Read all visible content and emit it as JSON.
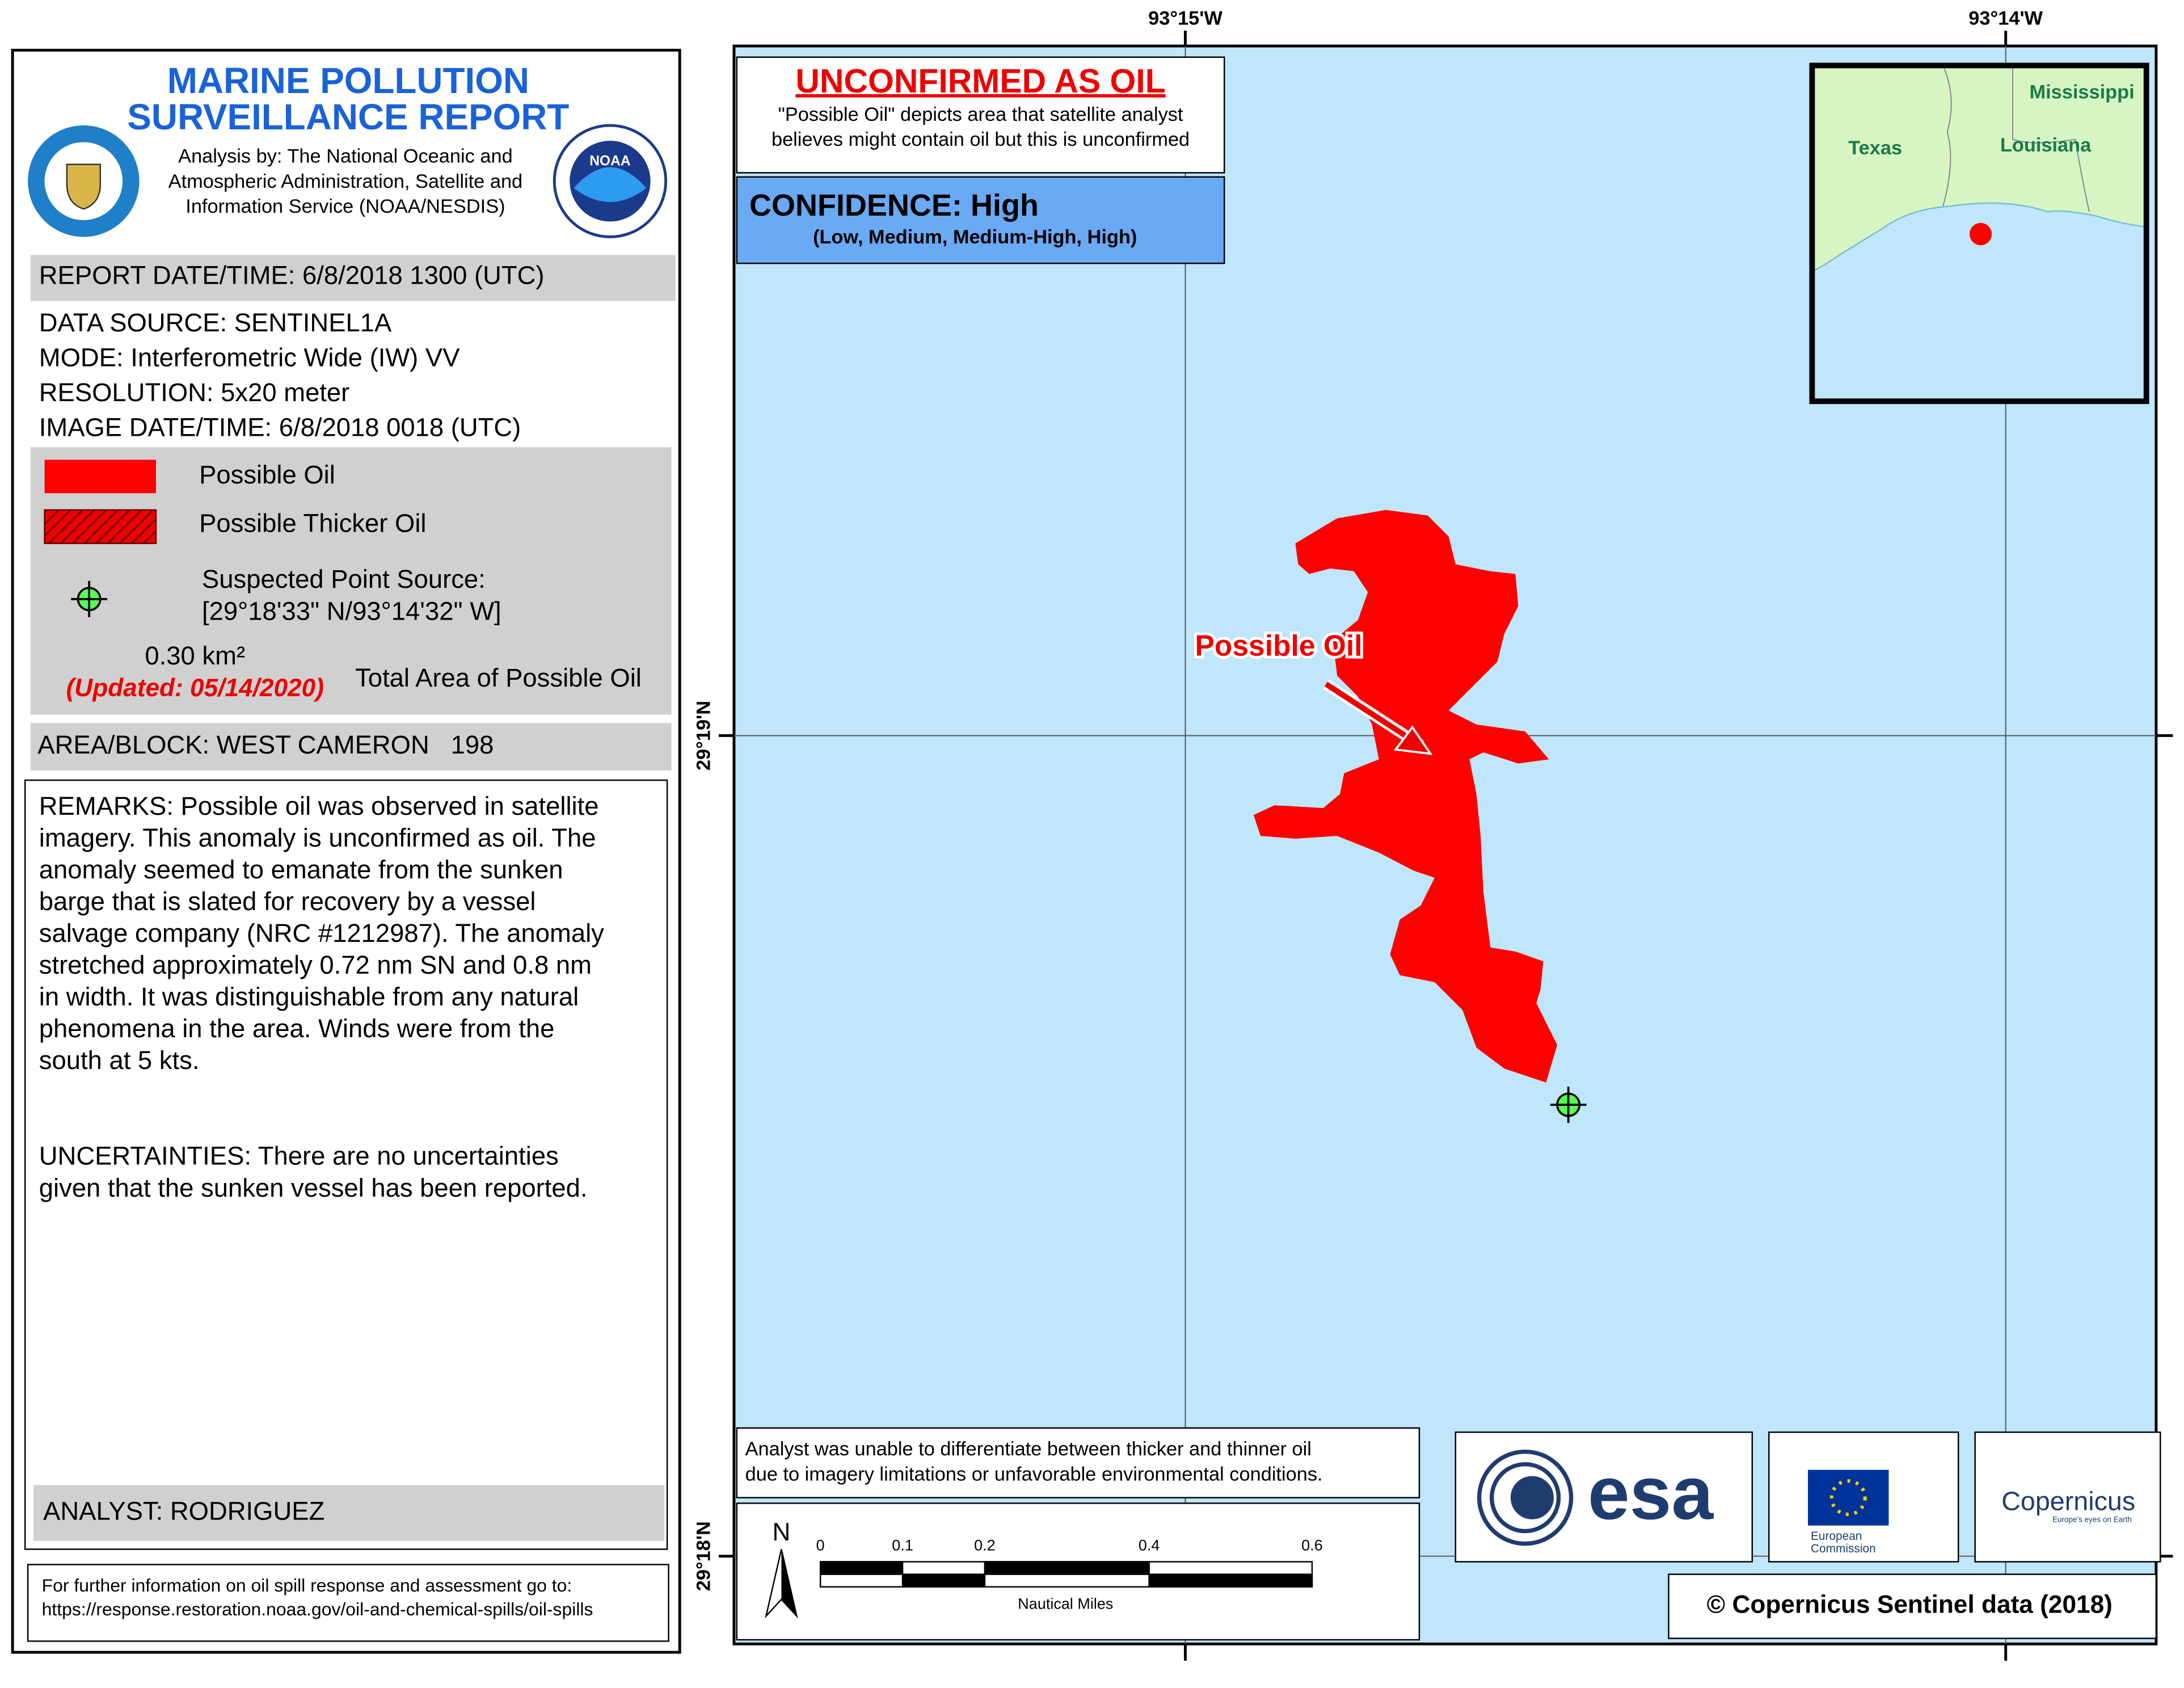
{
  "header": {
    "title_line1": "MARINE POLLUTION",
    "title_line2": "SURVEILLANCE REPORT",
    "analysis": [
      "Analysis by: The National Oceanic and",
      "Atmospheric Administration, Satellite and",
      "Information Service (NOAA/NESDIS)"
    ],
    "noaa": "NOAA"
  },
  "report_date": "REPORT DATE/TIME: 6/8/2018 1300 (UTC)",
  "details": [
    "DATA SOURCE: SENTINEL1A",
    "MODE: Interferometric Wide (IW) VV",
    "RESOLUTION: 5x20 meter",
    "IMAGE DATE/TIME: 6/8/2018 0018 (UTC)"
  ],
  "legend": {
    "items": [
      "Possible Oil",
      "Possible Thicker Oil"
    ],
    "point_source": [
      "Suspected Point Source:",
      "[29°18'33\" N/93°14'32\" W]"
    ],
    "area": "0.30 km²",
    "updated": "(Updated: 05/14/2020)",
    "area_label": "Total Area of Possible Oil"
  },
  "area_block": "AREA/BLOCK: WEST CAMERON   198",
  "remarks": [
    "REMARKS: Possible oil was observed in satellite",
    "imagery. This anomaly is unconfirmed as oil. The",
    "anomaly seemed to emanate from the sunken",
    "barge that is slated for recovery by a vessel",
    "salvage company (NRC #1212987). The anomaly",
    "stretched approximately 0.72 nm SN and 0.8 nm",
    "in width. It was distinguishable from any natural",
    "phenomena in the area. Winds were from the",
    "south at 5 kts."
  ],
  "uncertainties": [
    "UNCERTAINTIES: There are no uncertainties",
    "given that the sunken vessel has been reported."
  ],
  "analyst": "ANALYST: RODRIGUEZ",
  "footer": [
    "For further information on oil spill response and assessment go to:",
    "https://response.restoration.noaa.gov/oil-and-chemical-spills/oil-spills"
  ],
  "map": {
    "lon_labels": [
      "93°15'W",
      "93°14'W"
    ],
    "lat_labels": [
      "29°19'N",
      "29°18'N"
    ],
    "status": "UNCONFIRMED AS OIL",
    "status_note": [
      "\"Possible Oil\" depicts area that satellite analyst",
      "believes might contain oil but this is unconfirmed"
    ],
    "confidence": "CONFIDENCE: High",
    "confidence_scale": "(Low, Medium, Medium-High, High)",
    "inset_labels": [
      "Mississippi",
      "Texas",
      "Louisiana"
    ],
    "annotation": "Possible Oil",
    "disclaimer": [
      "Analyst was unable to differentiate between thicker and thinner oil",
      "due to imagery limitations or unfavorable environmental conditions."
    ],
    "north": "N",
    "scale_ticks": [
      "0",
      "0.1",
      "0.2",
      "0.4",
      "0.6"
    ],
    "scale_unit": "Nautical Miles",
    "credit": "© Copernicus Sentinel data (2018)"
  },
  "logos": {
    "esa": "esa",
    "ec": [
      "European",
      "Commission"
    ],
    "copernicus": "Copernicus",
    "copernicus_tagline": "Europe's eyes on Earth"
  }
}
